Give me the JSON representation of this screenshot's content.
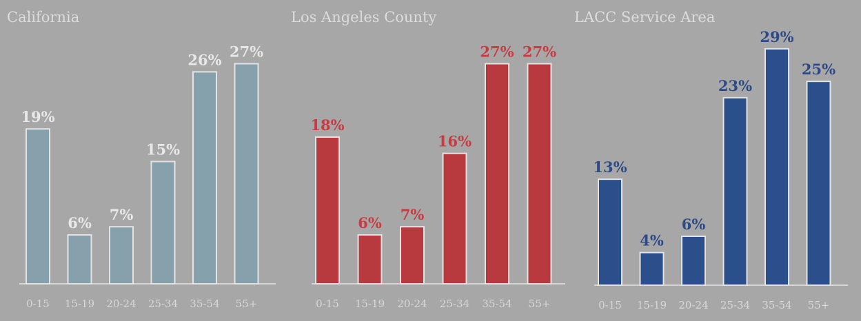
{
  "page": {
    "background": "#a7a7a7"
  },
  "chart_data": [
    {
      "type": "bar",
      "title": "California",
      "categories": [
        "0-15",
        "15-19",
        "20-24",
        "25-34",
        "35-54",
        "55+"
      ],
      "values": [
        19,
        6,
        7,
        15,
        26,
        27
      ],
      "value_labels": [
        "19%",
        "6%",
        "7%",
        "15%",
        "26%",
        "27%"
      ],
      "ylim": [
        0,
        30
      ],
      "grid": false,
      "bar_color": "#86a1ac",
      "label_color": "#e8e8e8",
      "title_color": "#dcdcdc"
    },
    {
      "type": "bar",
      "title": "Los Angeles County",
      "categories": [
        "0-15",
        "15-19",
        "20-24",
        "25-34",
        "35-54",
        "55+"
      ],
      "values": [
        18,
        6,
        7,
        16,
        27,
        27
      ],
      "value_labels": [
        "18%",
        "6%",
        "7%",
        "16%",
        "27%",
        "27%"
      ],
      "ylim": [
        0,
        30
      ],
      "grid": false,
      "bar_color": "#b83a3e",
      "label_color": "#c93b40",
      "title_color": "#dcdcdc"
    },
    {
      "type": "bar",
      "title": "LACC Service Area",
      "categories": [
        "0-15",
        "15-19",
        "20-24",
        "25-34",
        "35-54",
        "55+"
      ],
      "values": [
        13,
        4,
        6,
        23,
        29,
        25
      ],
      "value_labels": [
        "13%",
        "4%",
        "6%",
        "23%",
        "29%",
        "25%"
      ],
      "ylim": [
        0,
        30
      ],
      "grid": false,
      "bar_color": "#2a4f8a",
      "label_color": "#2c4b86",
      "title_color": "#dcdcdc"
    }
  ]
}
